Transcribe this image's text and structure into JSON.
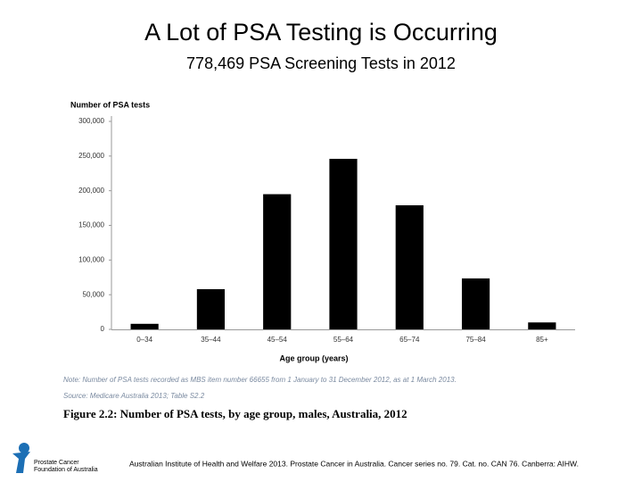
{
  "chart_data": {
    "type": "bar",
    "title": "A Lot of PSA Testing is Occurring",
    "subtitle": "778,469 PSA Screening Tests in 2012",
    "y_label": "Number of PSA tests",
    "x_label": "Age group (years)",
    "categories": [
      "0–34",
      "35–44",
      "45–54",
      "55–64",
      "65–74",
      "75–84",
      "85+"
    ],
    "values": [
      8000,
      58000,
      195000,
      246000,
      179000,
      73500,
      10000
    ],
    "color": "#000000",
    "ylim": [
      0,
      300000
    ],
    "yticks": [
      0,
      {
        "value": 50000,
        "label": "50,000"
      },
      {
        "value": 100000,
        "label": "100,000"
      },
      {
        "value": 150000,
        "label": "150,000"
      },
      {
        "value": 200000,
        "label": "200,000"
      },
      {
        "value": 250000,
        "label": "250,000"
      },
      {
        "value": 300000,
        "label": "300,000"
      }
    ],
    "grid": false,
    "note": "Note: Number of PSA tests recorded as MBS item number 66655 from 1 January to 31 December 2012, as at 1 March 2013.",
    "source": "Source: Medicare Australia 2013; Table S2.2",
    "caption": "Figure 2.2: Number of PSA tests, by age group, males, Australia, 2012"
  },
  "footer": {
    "logo_line1": "Prostate Cancer",
    "logo_line2": "Foundation of Australia",
    "citation": "Australian Institute of Health and Welfare 2013. Prostate Cancer in Australia. Cancer series no. 79. Cat. no. CAN 76. Canberra: AIHW."
  }
}
